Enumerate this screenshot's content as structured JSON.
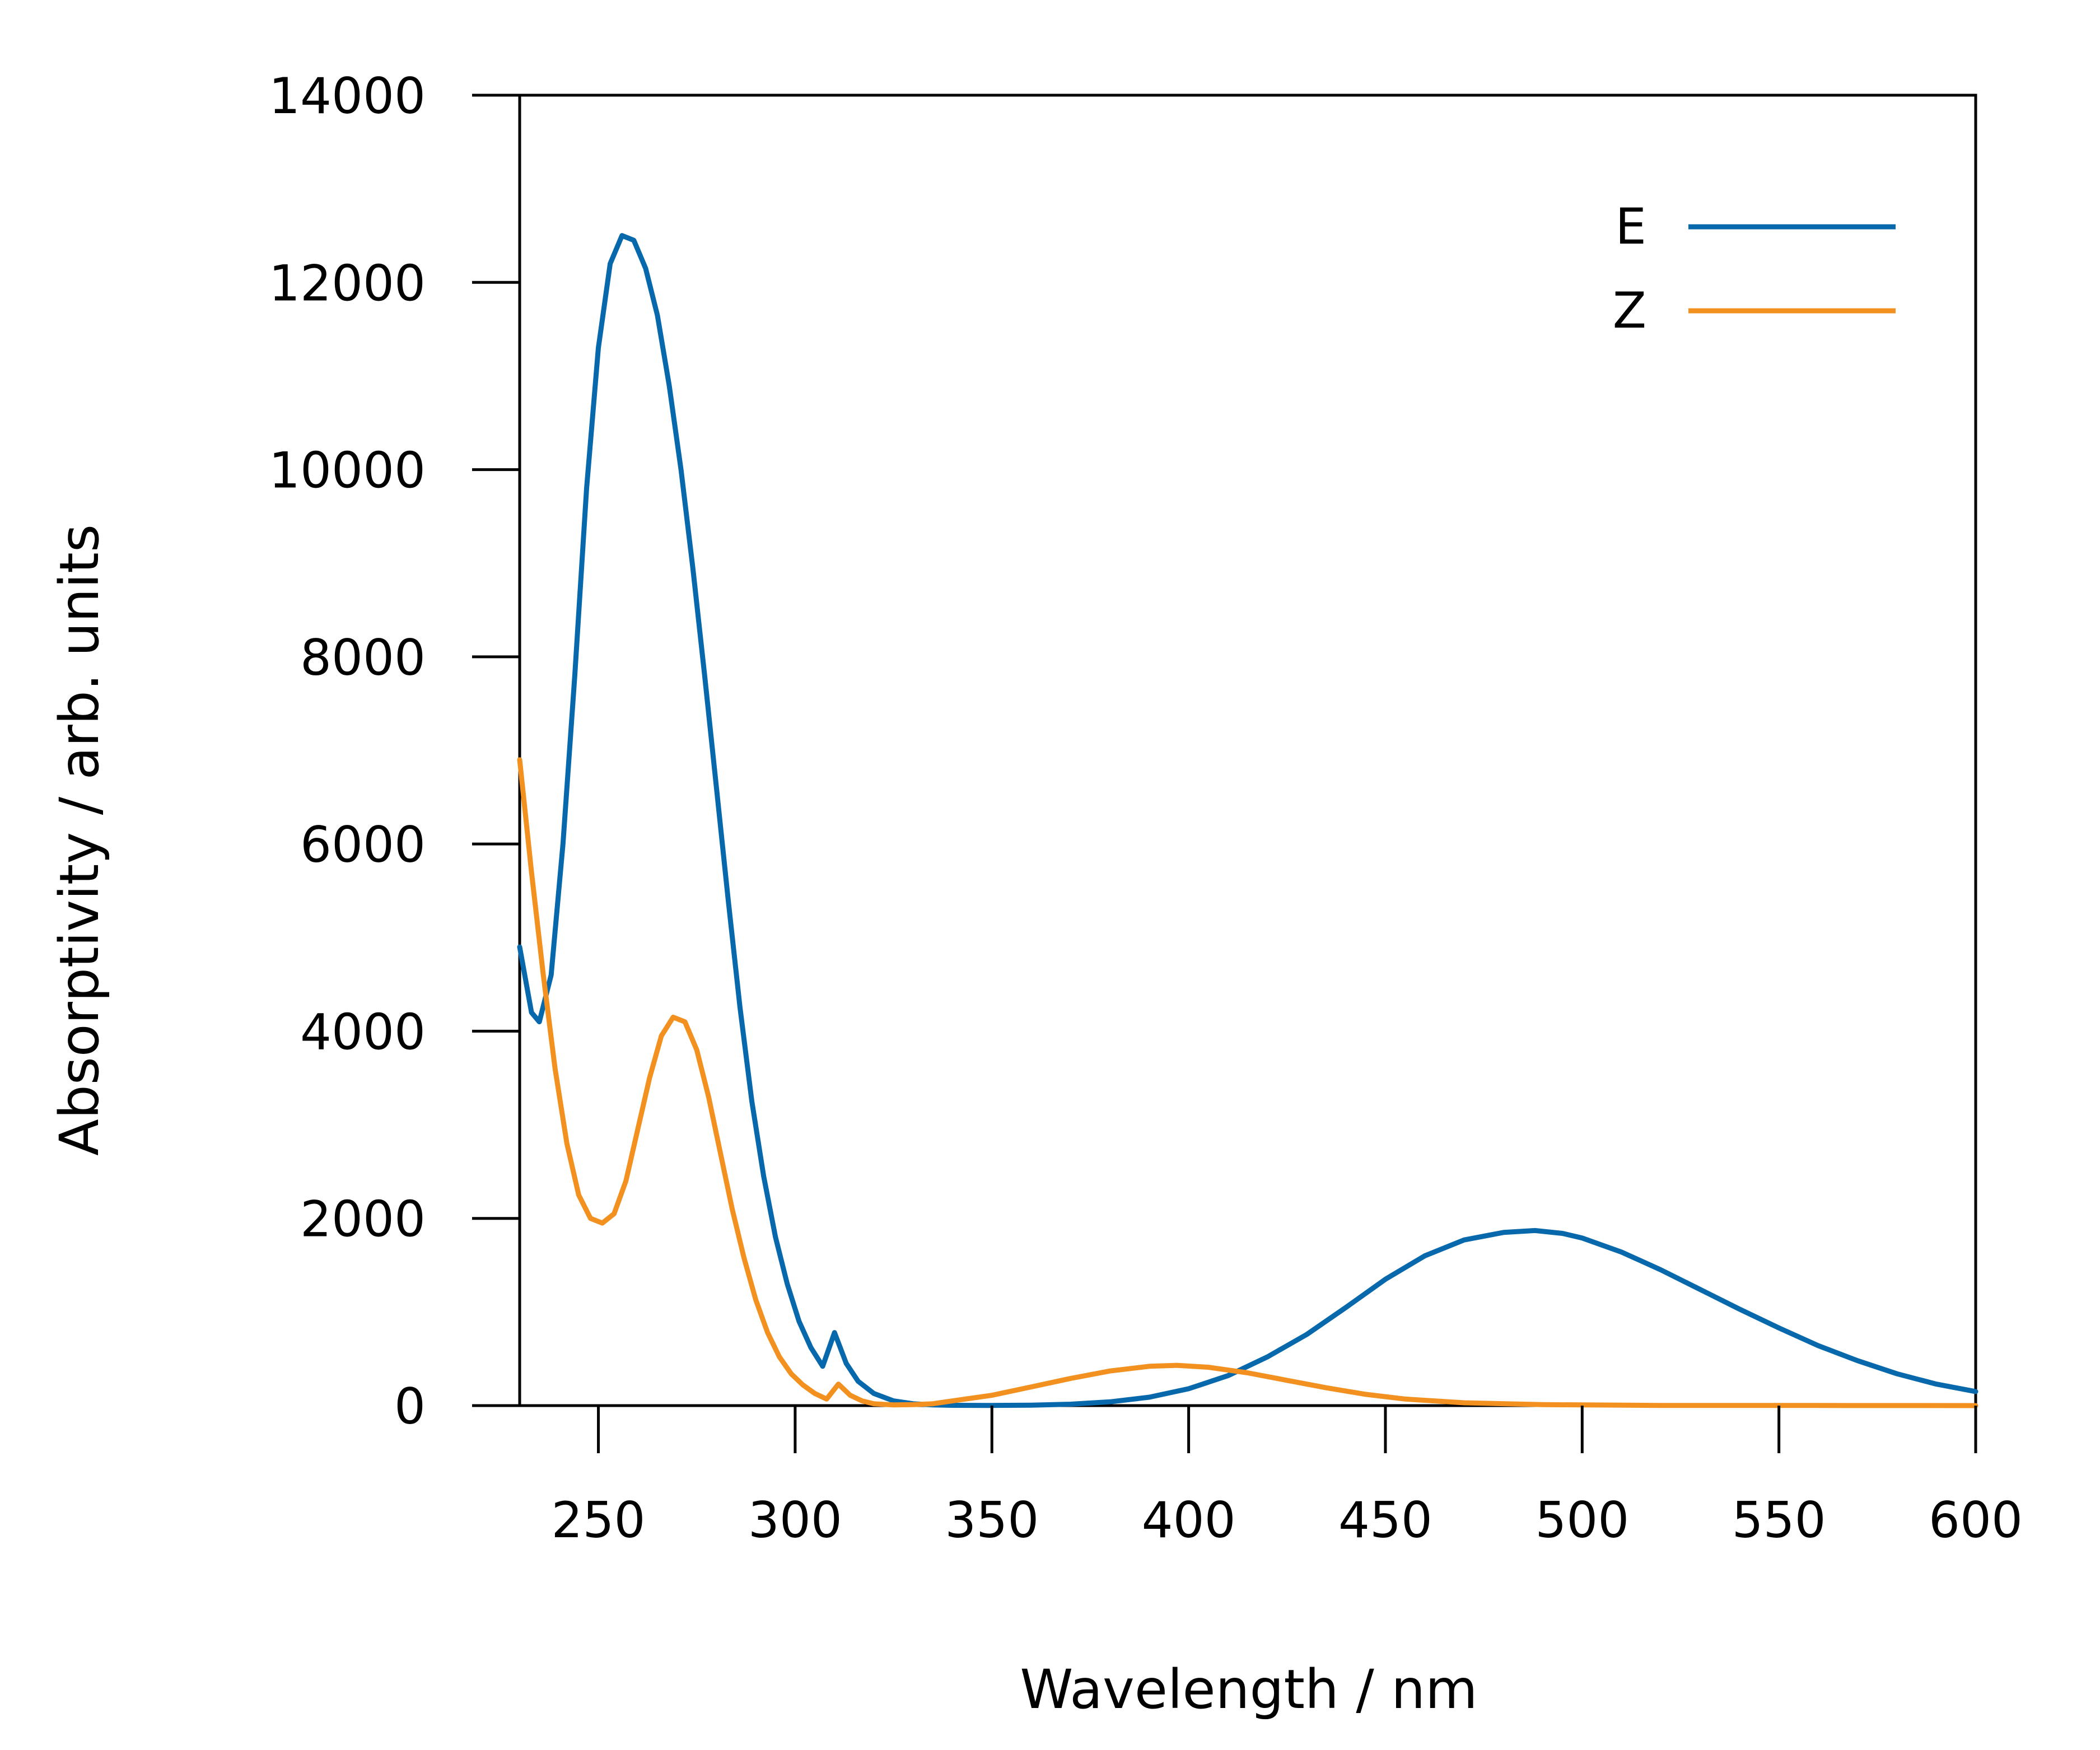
{
  "chart_data": {
    "type": "line",
    "xlabel": "Wavelength / nm",
    "ylabel": "Absorptivity / arb. units",
    "xlim": [
      230,
      600
    ],
    "ylim": [
      0,
      14000
    ],
    "xticks": [
      250,
      300,
      350,
      400,
      450,
      500,
      550,
      600
    ],
    "yticks": [
      0,
      2000,
      4000,
      6000,
      8000,
      10000,
      12000,
      14000
    ],
    "xtick_labels": [
      "250",
      "300",
      "350",
      "400",
      "450",
      "500",
      "550",
      "600"
    ],
    "ytick_labels": [
      "0",
      "2000",
      "4000",
      "6000",
      "8000",
      "10000",
      "12000",
      "14000"
    ],
    "grid": false,
    "legend_position": "top-right",
    "series": [
      {
        "name": "E",
        "color": "#0868ac",
        "x": [
          230,
          233,
          235,
          238,
          241,
          244,
          247,
          250,
          253,
          256,
          259,
          262,
          265,
          268,
          271,
          274,
          277,
          280,
          283,
          286,
          289,
          292,
          295,
          298,
          301,
          304,
          307,
          310,
          313,
          316,
          320,
          325,
          330,
          335,
          340,
          350,
          360,
          370,
          380,
          390,
          400,
          410,
          420,
          430,
          440,
          450,
          460,
          470,
          480,
          488,
          495,
          500,
          510,
          520,
          530,
          540,
          550,
          560,
          570,
          580,
          590,
          600
        ],
        "y": [
          4900,
          4200,
          4100,
          4600,
          6000,
          7800,
          9800,
          11300,
          12200,
          12500,
          12450,
          12150,
          11650,
          10900,
          10000,
          8950,
          7800,
          6600,
          5400,
          4250,
          3250,
          2450,
          1800,
          1300,
          900,
          620,
          420,
          780,
          450,
          260,
          130,
          50,
          20,
          8,
          3,
          2,
          5,
          15,
          40,
          90,
          180,
          320,
          520,
          760,
          1050,
          1350,
          1600,
          1770,
          1850,
          1870,
          1840,
          1790,
          1640,
          1450,
          1240,
          1030,
          830,
          640,
          480,
          340,
          230,
          150
        ]
      },
      {
        "name": "Z",
        "color": "#f29120",
        "x": [
          230,
          233,
          236,
          239,
          242,
          245,
          248,
          251,
          254,
          257,
          260,
          263,
          266,
          269,
          272,
          275,
          278,
          281,
          284,
          287,
          290,
          293,
          296,
          299,
          302,
          305,
          308,
          311,
          314,
          317,
          320,
          325,
          330,
          335,
          340,
          350,
          360,
          370,
          380,
          390,
          397,
          405,
          415,
          425,
          435,
          445,
          455,
          470,
          490,
          520,
          560,
          600
        ],
        "y": [
          6900,
          5700,
          4600,
          3600,
          2800,
          2250,
          2000,
          1950,
          2050,
          2400,
          2950,
          3500,
          3950,
          4150,
          4100,
          3800,
          3300,
          2700,
          2100,
          1580,
          1130,
          780,
          520,
          340,
          220,
          130,
          70,
          230,
          110,
          50,
          20,
          8,
          10,
          20,
          50,
          110,
          200,
          290,
          370,
          420,
          430,
          410,
          350,
          270,
          190,
          120,
          70,
          30,
          10,
          2,
          1,
          0
        ]
      }
    ]
  }
}
